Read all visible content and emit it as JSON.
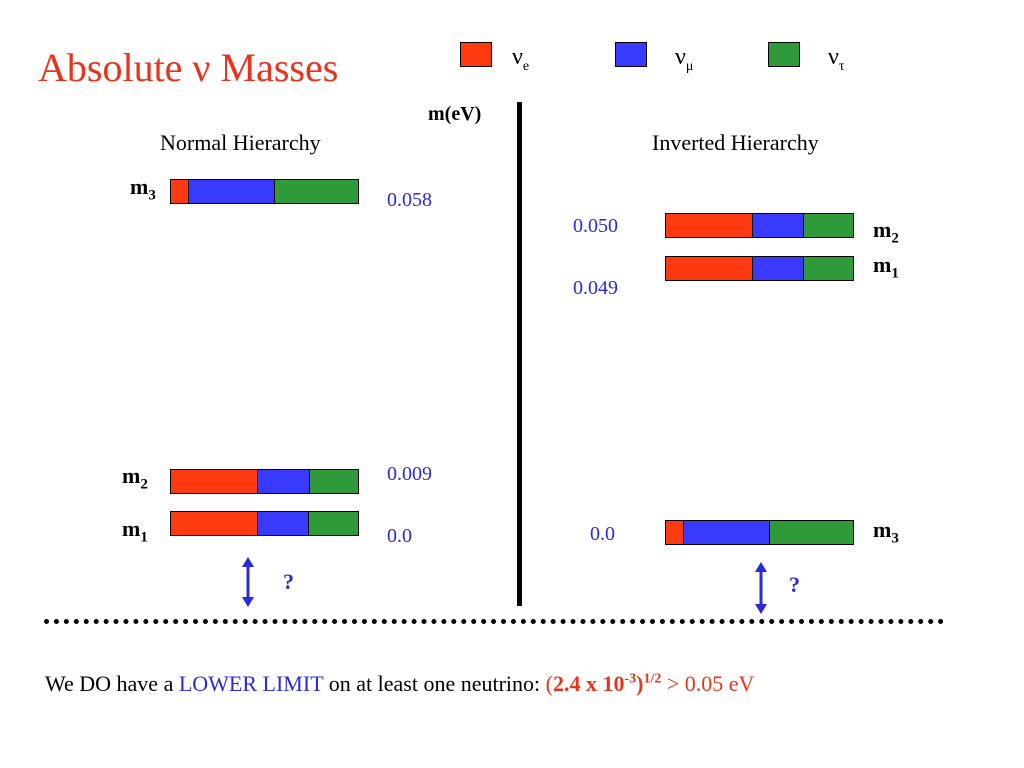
{
  "title": "Absolute ν Masses",
  "legend": [
    {
      "symbol": "ν",
      "sub": "e",
      "color": "#ff3a10"
    },
    {
      "symbol": "ν",
      "sub": "μ",
      "color": "#3a3aff"
    },
    {
      "symbol": "ν",
      "sub": "τ",
      "color": "#2f9a3a"
    }
  ],
  "axis_label": "m(eV)",
  "normal": {
    "heading": "Normal  Hierarchy",
    "states": [
      {
        "label": "m",
        "sub": "3",
        "value": "0.058",
        "fractions": [
          0.09,
          0.46,
          0.45
        ]
      },
      {
        "label": "m",
        "sub": "2",
        "value": "0.009",
        "fractions": [
          0.46,
          0.28,
          0.26
        ]
      },
      {
        "label": "m",
        "sub": "1",
        "value": "0.0",
        "fractions": [
          0.46,
          0.27,
          0.27
        ]
      }
    ],
    "question": "?"
  },
  "inverted": {
    "heading": "Inverted  Hierarchy",
    "states": [
      {
        "label": "m",
        "sub": "2",
        "value": "0.050",
        "fractions": [
          0.46,
          0.27,
          0.27
        ]
      },
      {
        "label": "m",
        "sub": "1",
        "value": "0.049",
        "fractions": [
          0.46,
          0.27,
          0.27
        ]
      },
      {
        "label": "m",
        "sub": "3",
        "value": "0.0",
        "fractions": [
          0.09,
          0.46,
          0.45
        ]
      }
    ],
    "question": "?"
  },
  "bottom": {
    "prefix": "We DO have a ",
    "highlight": "LOWER LIMIT",
    "middle": " on at least one neutrino:  ",
    "formula_open": "(",
    "formula_value": "2.4 x 10",
    "formula_exp": "-3",
    "formula_close": ")",
    "formula_pow": "1/2",
    "formula_rest": " > 0.05 eV"
  }
}
